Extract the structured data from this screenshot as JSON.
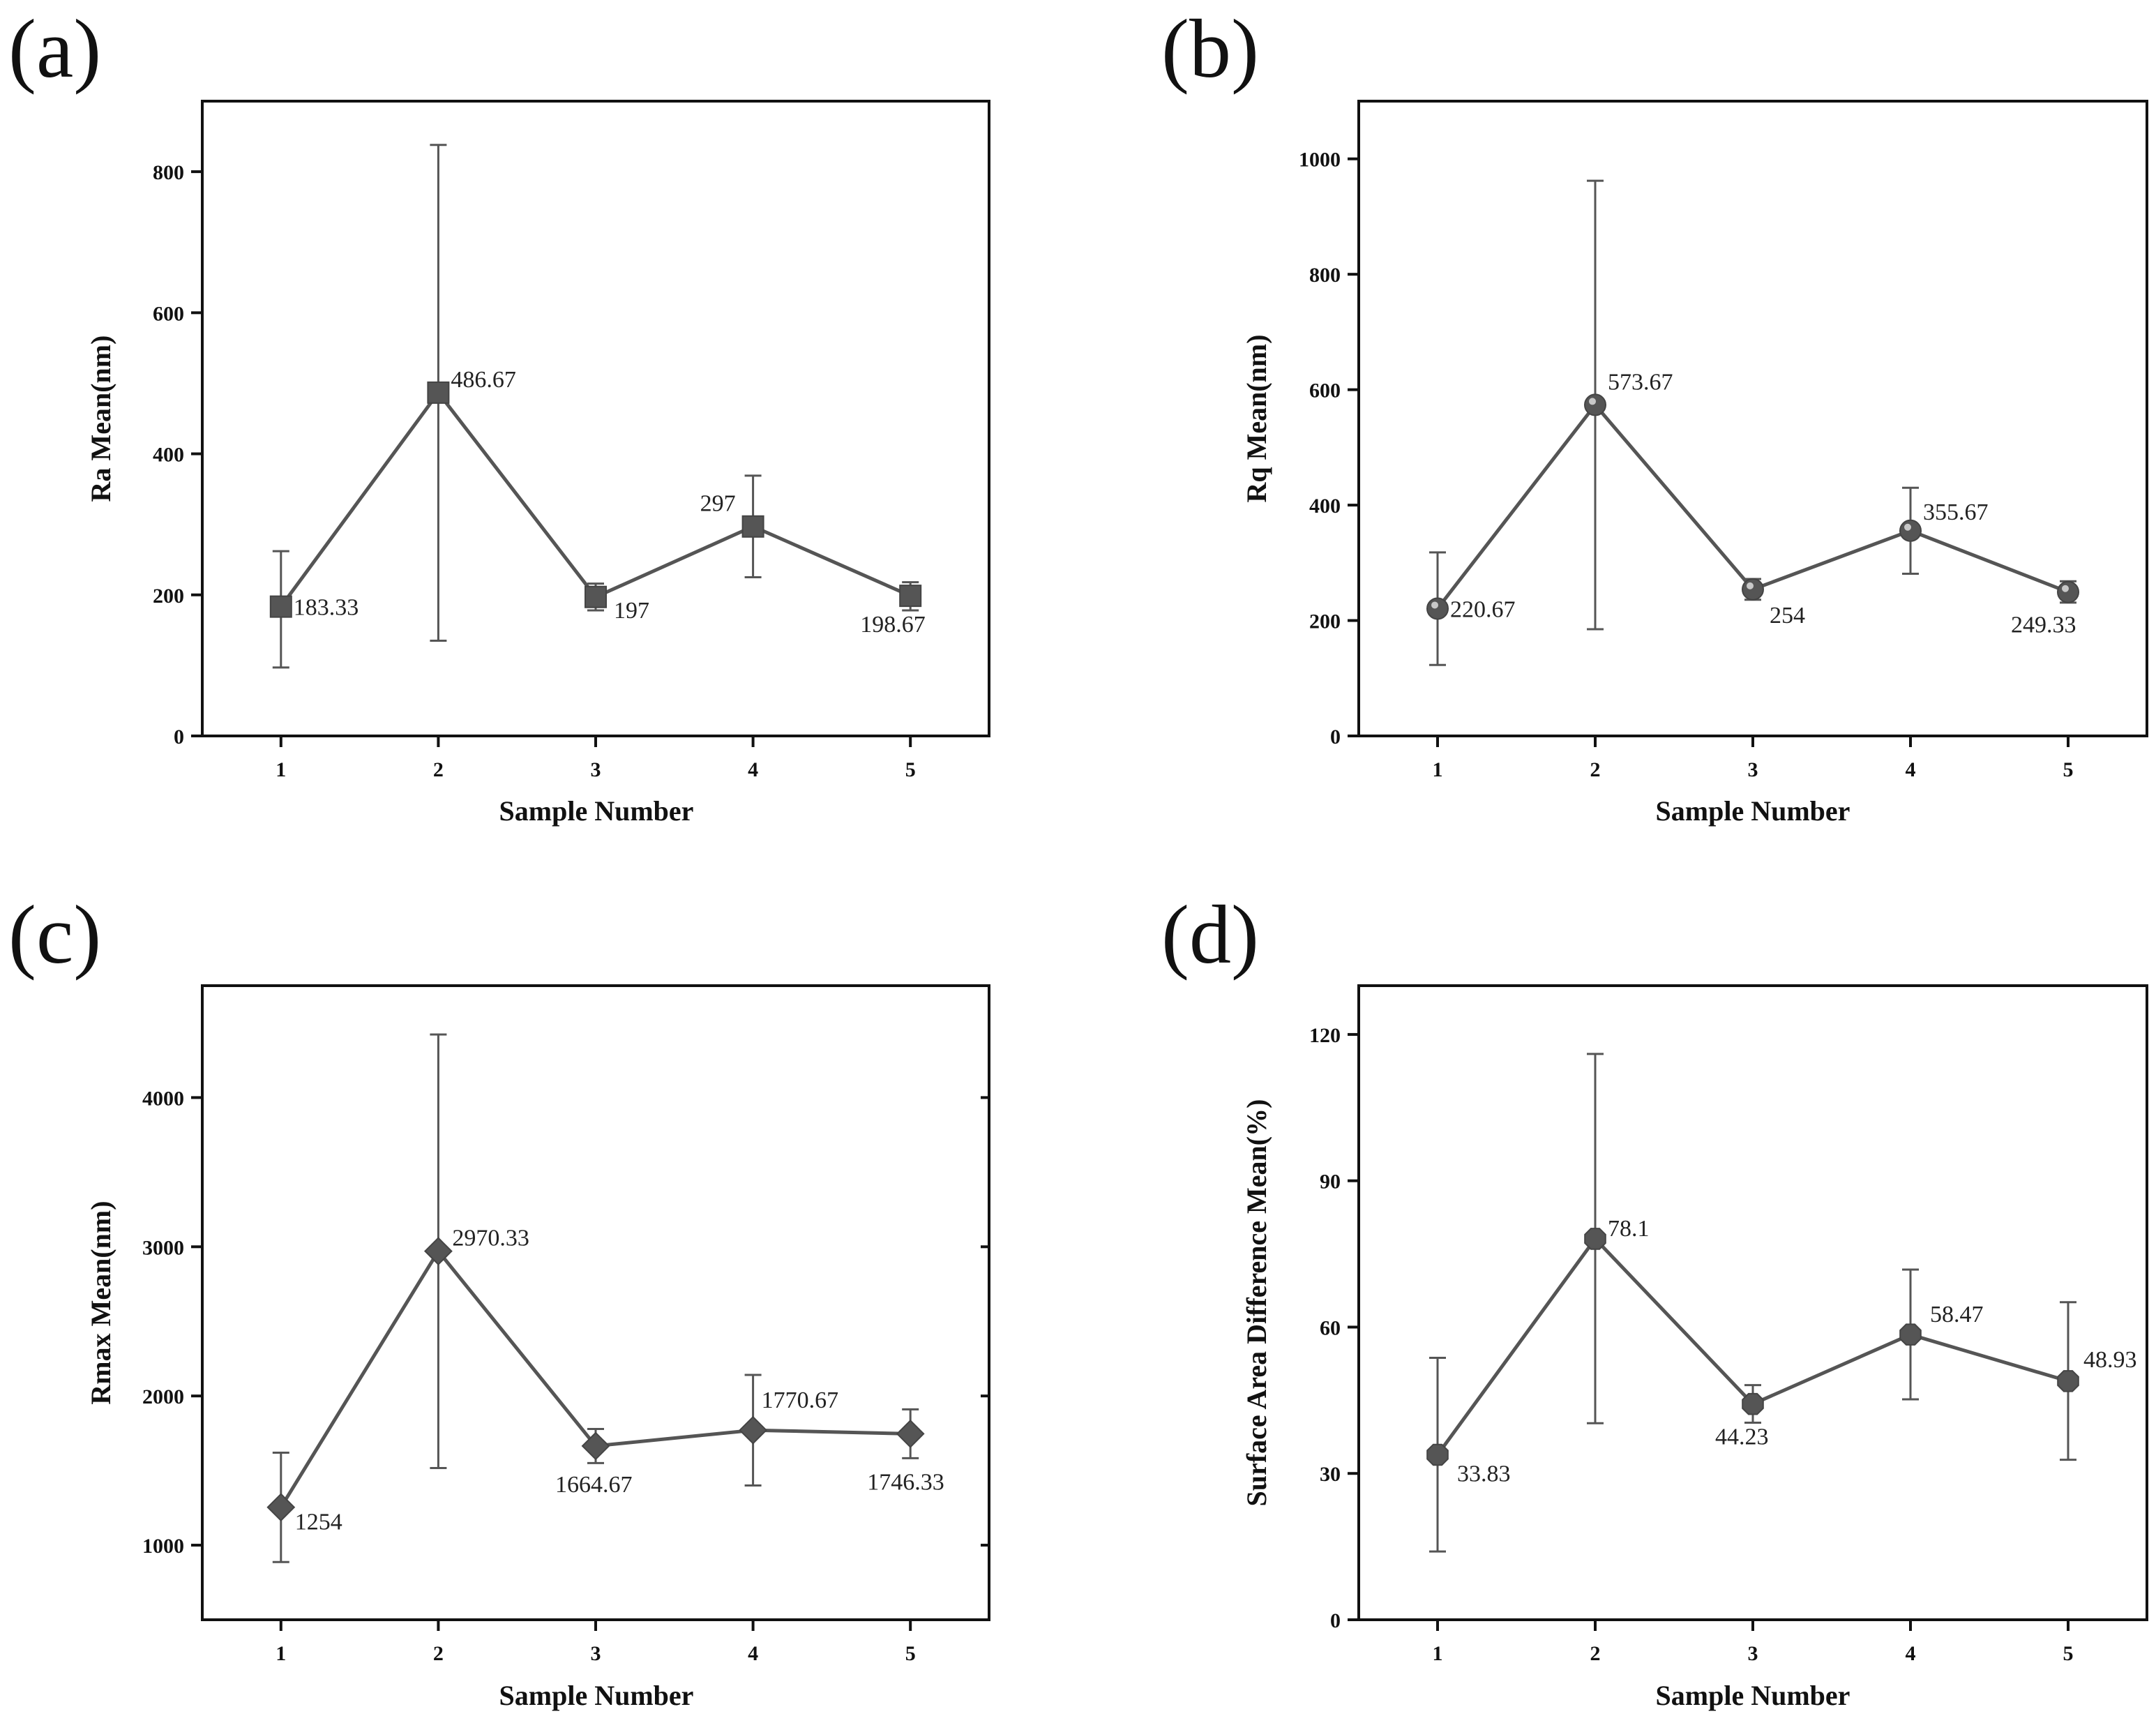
{
  "figure": {
    "title": ""
  },
  "chart_data": [
    {
      "type": "line",
      "panel": "(a)",
      "xlabel": "Sample Number",
      "ylabel": "Ra Mean(nm)",
      "x": [
        1,
        2,
        3,
        4,
        5
      ],
      "xticks": [
        "1",
        "2",
        "3",
        "4",
        "5"
      ],
      "ylim": [
        0,
        900
      ],
      "yticks": [
        0,
        200,
        400,
        600,
        800
      ],
      "marker": "square",
      "series": [
        {
          "name": "Ra Mean",
          "values": [
            183.33,
            486.67,
            197,
            297,
            198.67
          ],
          "error_low": [
            97,
            135,
            178,
            225,
            178
          ],
          "error_high": [
            262,
            838,
            216,
            369,
            218
          ],
          "labels": [
            "183.33",
            "486.67",
            "197",
            "297",
            "198.67"
          ]
        }
      ]
    },
    {
      "type": "line",
      "panel": "(b)",
      "xlabel": "Sample Number",
      "ylabel": "Rq Mean(nm)",
      "x": [
        1,
        2,
        3,
        4,
        5
      ],
      "xticks": [
        "1",
        "2",
        "3",
        "4",
        "5"
      ],
      "ylim": [
        0,
        1100
      ],
      "yticks": [
        0,
        200,
        400,
        600,
        800,
        1000
      ],
      "marker": "circle",
      "series": [
        {
          "name": "Rq Mean",
          "values": [
            220.67,
            573.67,
            254,
            355.67,
            249.33
          ],
          "error_low": [
            123,
            185,
            236,
            281,
            231
          ],
          "error_high": [
            318,
            962,
            272,
            430,
            268
          ],
          "labels": [
            "220.67",
            "573.67",
            "254",
            "355.67",
            "249.33"
          ]
        }
      ]
    },
    {
      "type": "line",
      "panel": "(c)",
      "xlabel": "Sample Number",
      "ylabel": "Rmax Mean(nm)",
      "x": [
        1,
        2,
        3,
        4,
        5
      ],
      "xticks": [
        "1",
        "2",
        "3",
        "4",
        "5"
      ],
      "ylim": [
        500,
        4750
      ],
      "yticks": [
        1000,
        2000,
        3000,
        4000
      ],
      "marker": "diamond",
      "series": [
        {
          "name": "Rmax Mean",
          "values": [
            1254,
            2970.33,
            1664.67,
            1770.67,
            1746.33
          ],
          "error_low": [
            887,
            1517,
            1550,
            1400,
            1583
          ],
          "error_high": [
            1620,
            4423,
            1779,
            2141,
            1910
          ],
          "labels": [
            "1254",
            "2970.33",
            "1664.67",
            "1770.67",
            "1746.33"
          ]
        }
      ]
    },
    {
      "type": "line",
      "panel": "(d)",
      "xlabel": "Sample Number",
      "ylabel": "Surface Area Difference Mean(%)",
      "x": [
        1,
        2,
        3,
        4,
        5
      ],
      "xticks": [
        "1",
        "2",
        "3",
        "4",
        "5"
      ],
      "ylim": [
        0,
        130
      ],
      "yticks": [
        0,
        30,
        60,
        90,
        120
      ],
      "marker": "octagon",
      "series": [
        {
          "name": "Surface Area Difference Mean",
          "values": [
            33.83,
            78.1,
            44.23,
            58.47,
            48.93
          ],
          "error_low": [
            14,
            40.3,
            40.4,
            45.2,
            32.8
          ],
          "error_high": [
            53.7,
            116,
            48.1,
            71.8,
            65.1
          ],
          "labels": [
            "33.83",
            "78.1",
            "44.23",
            "58.47",
            "48.93"
          ]
        }
      ]
    }
  ]
}
